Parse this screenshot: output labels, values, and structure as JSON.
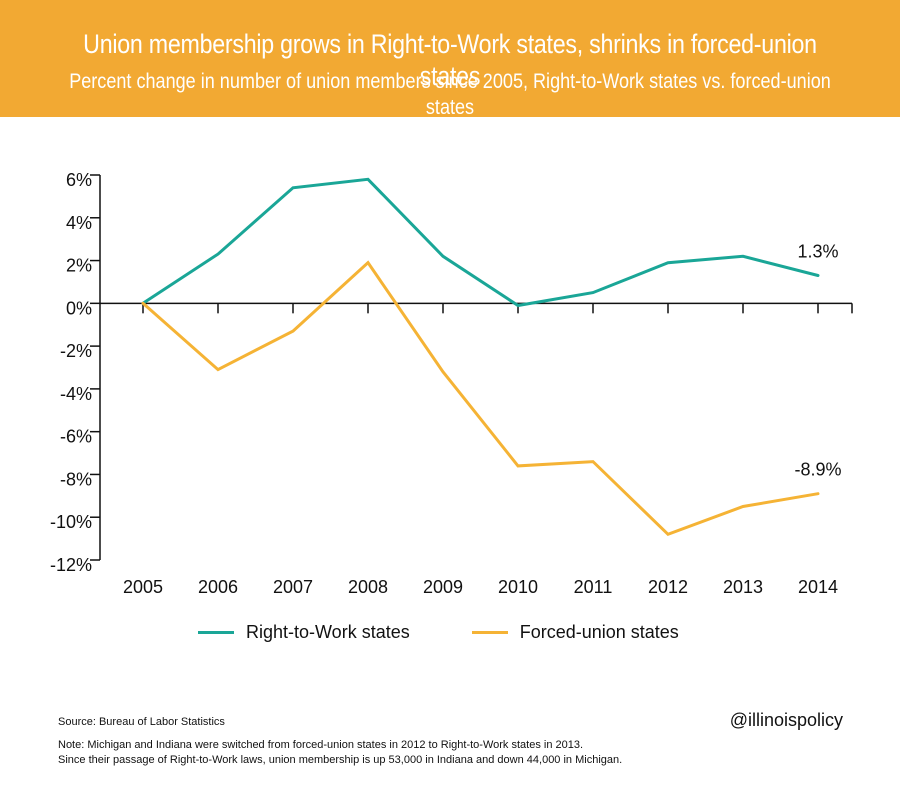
{
  "header": {
    "title": "Union membership grows in Right-to-Work states, shrinks in forced-union states",
    "subtitle": "Percent change in number of union members since 2005, Right-to-Work states vs. forced-union states"
  },
  "chart_data": {
    "type": "line",
    "x": [
      "2005",
      "2006",
      "2007",
      "2008",
      "2009",
      "2010",
      "2011",
      "2012",
      "2013",
      "2014"
    ],
    "series": [
      {
        "name": "Right-to-Work states",
        "color": "#1AA697",
        "values": [
          0,
          2.3,
          5.4,
          5.8,
          2.2,
          -0.1,
          0.5,
          1.9,
          2.2,
          1.3
        ],
        "end_label": "1.3%"
      },
      {
        "name": "Forced-union states",
        "color": "#F5B335",
        "values": [
          0,
          -3.1,
          -1.3,
          1.9,
          -3.2,
          -7.6,
          -7.4,
          -10.8,
          -9.5,
          -8.9
        ],
        "end_label": "-8.9%"
      }
    ],
    "ylim": [
      -12,
      6
    ],
    "yticks": [
      6,
      4,
      2,
      0,
      -2,
      -4,
      -6,
      -8,
      -10,
      -12
    ],
    "ytick_labels": [
      "6%",
      "4%",
      "2%",
      "0%",
      "-2%",
      "-4%",
      "-6%",
      "-8%",
      "-10%",
      "-12%"
    ],
    "legend_placement": "bottom",
    "grid": false
  },
  "footer": {
    "source": "Source: Bureau of Labor Statistics",
    "handle": "@illinoispolicy",
    "note_lines": [
      "Note: Michigan and Indiana were switched from forced-union states in 2012 to Right-to-Work states in 2013.",
      "Since their passage of Right-to-Work laws, union membership is up 53,000 in Indiana and down 44,000 in Michigan."
    ]
  }
}
